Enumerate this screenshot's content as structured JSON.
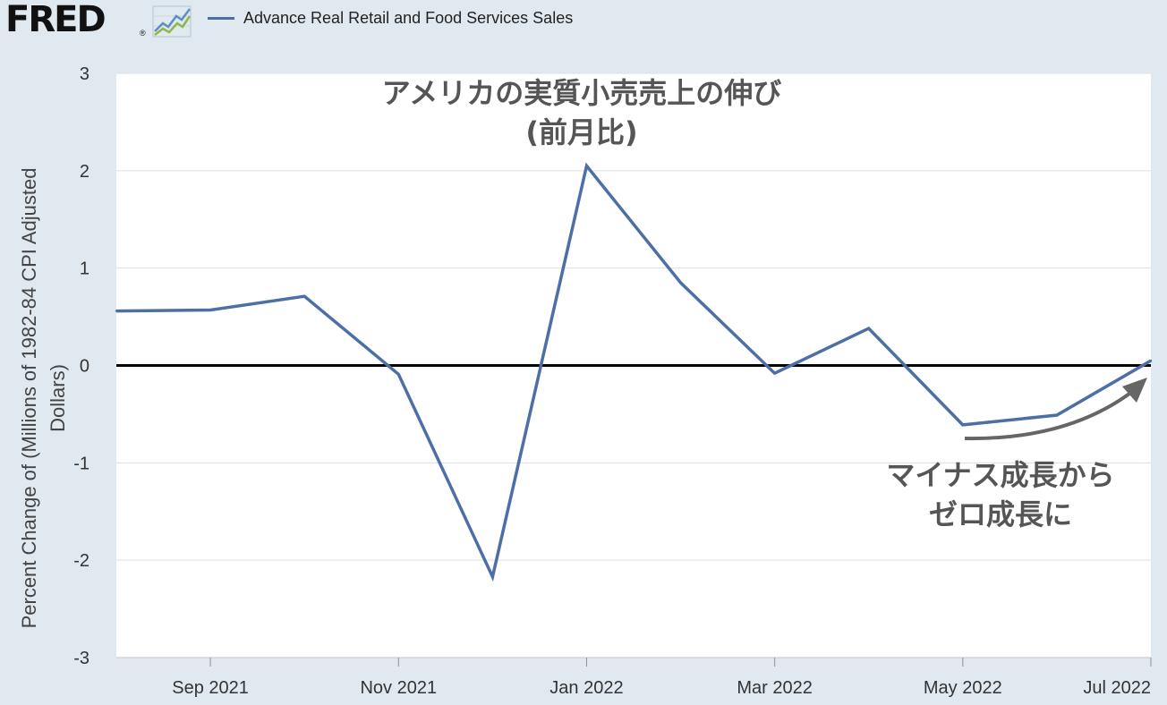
{
  "header": {
    "logo_text": "FRED",
    "logo_reg": "®",
    "logo_icon": "trend-line-icon",
    "legend_label": "Advance Real Retail and Food Services Sales",
    "series_color": "#4e6fa5"
  },
  "chart_data": {
    "type": "line",
    "title": "",
    "xlabel": "",
    "ylabel_lines": [
      "Percent Change of (Millions of 1982-84 CPI Adjusted",
      "Dollars)"
    ],
    "ylim": [
      -3,
      3
    ],
    "yticks": [
      "3",
      "2",
      "1",
      "0",
      "-1",
      "-2",
      "-3"
    ],
    "ytick_values": [
      3,
      2,
      1,
      0,
      -1,
      -2,
      -3
    ],
    "xlim": [
      "2021-08",
      "2022-07"
    ],
    "xtick_labels": [
      {
        "label": "Sep 2021",
        "date": "2021-09"
      },
      {
        "label": "Nov 2021",
        "date": "2021-11"
      },
      {
        "label": "Jan 2022",
        "date": "2022-01"
      },
      {
        "label": "Mar 2022",
        "date": "2022-03"
      },
      {
        "label": "May 2022",
        "date": "2022-05"
      },
      {
        "label": "Jul 2022",
        "date": "2022-07"
      }
    ],
    "grid": true,
    "zero_line": true,
    "series": [
      {
        "name": "Advance Real Retail and Food Services Sales",
        "color": "#4e6fa5",
        "x": [
          "2021-08",
          "2021-09",
          "2021-10",
          "2021-11",
          "2021-12",
          "2022-01",
          "2022-02",
          "2022-03",
          "2022-04",
          "2022-05",
          "2022-06",
          "2022-07"
        ],
        "y": [
          0.56,
          0.57,
          0.71,
          -0.09,
          -2.17,
          2.05,
          0.85,
          -0.08,
          0.38,
          -0.61,
          -0.51,
          0.05
        ]
      }
    ],
    "annotations": [
      {
        "lines": [
          "アメリカの実質小売売上の伸び",
          "(前月比)"
        ]
      },
      {
        "lines": [
          "マイナス成長から",
          "ゼロ成長に"
        ],
        "arrow_color": "#666666"
      }
    ]
  }
}
